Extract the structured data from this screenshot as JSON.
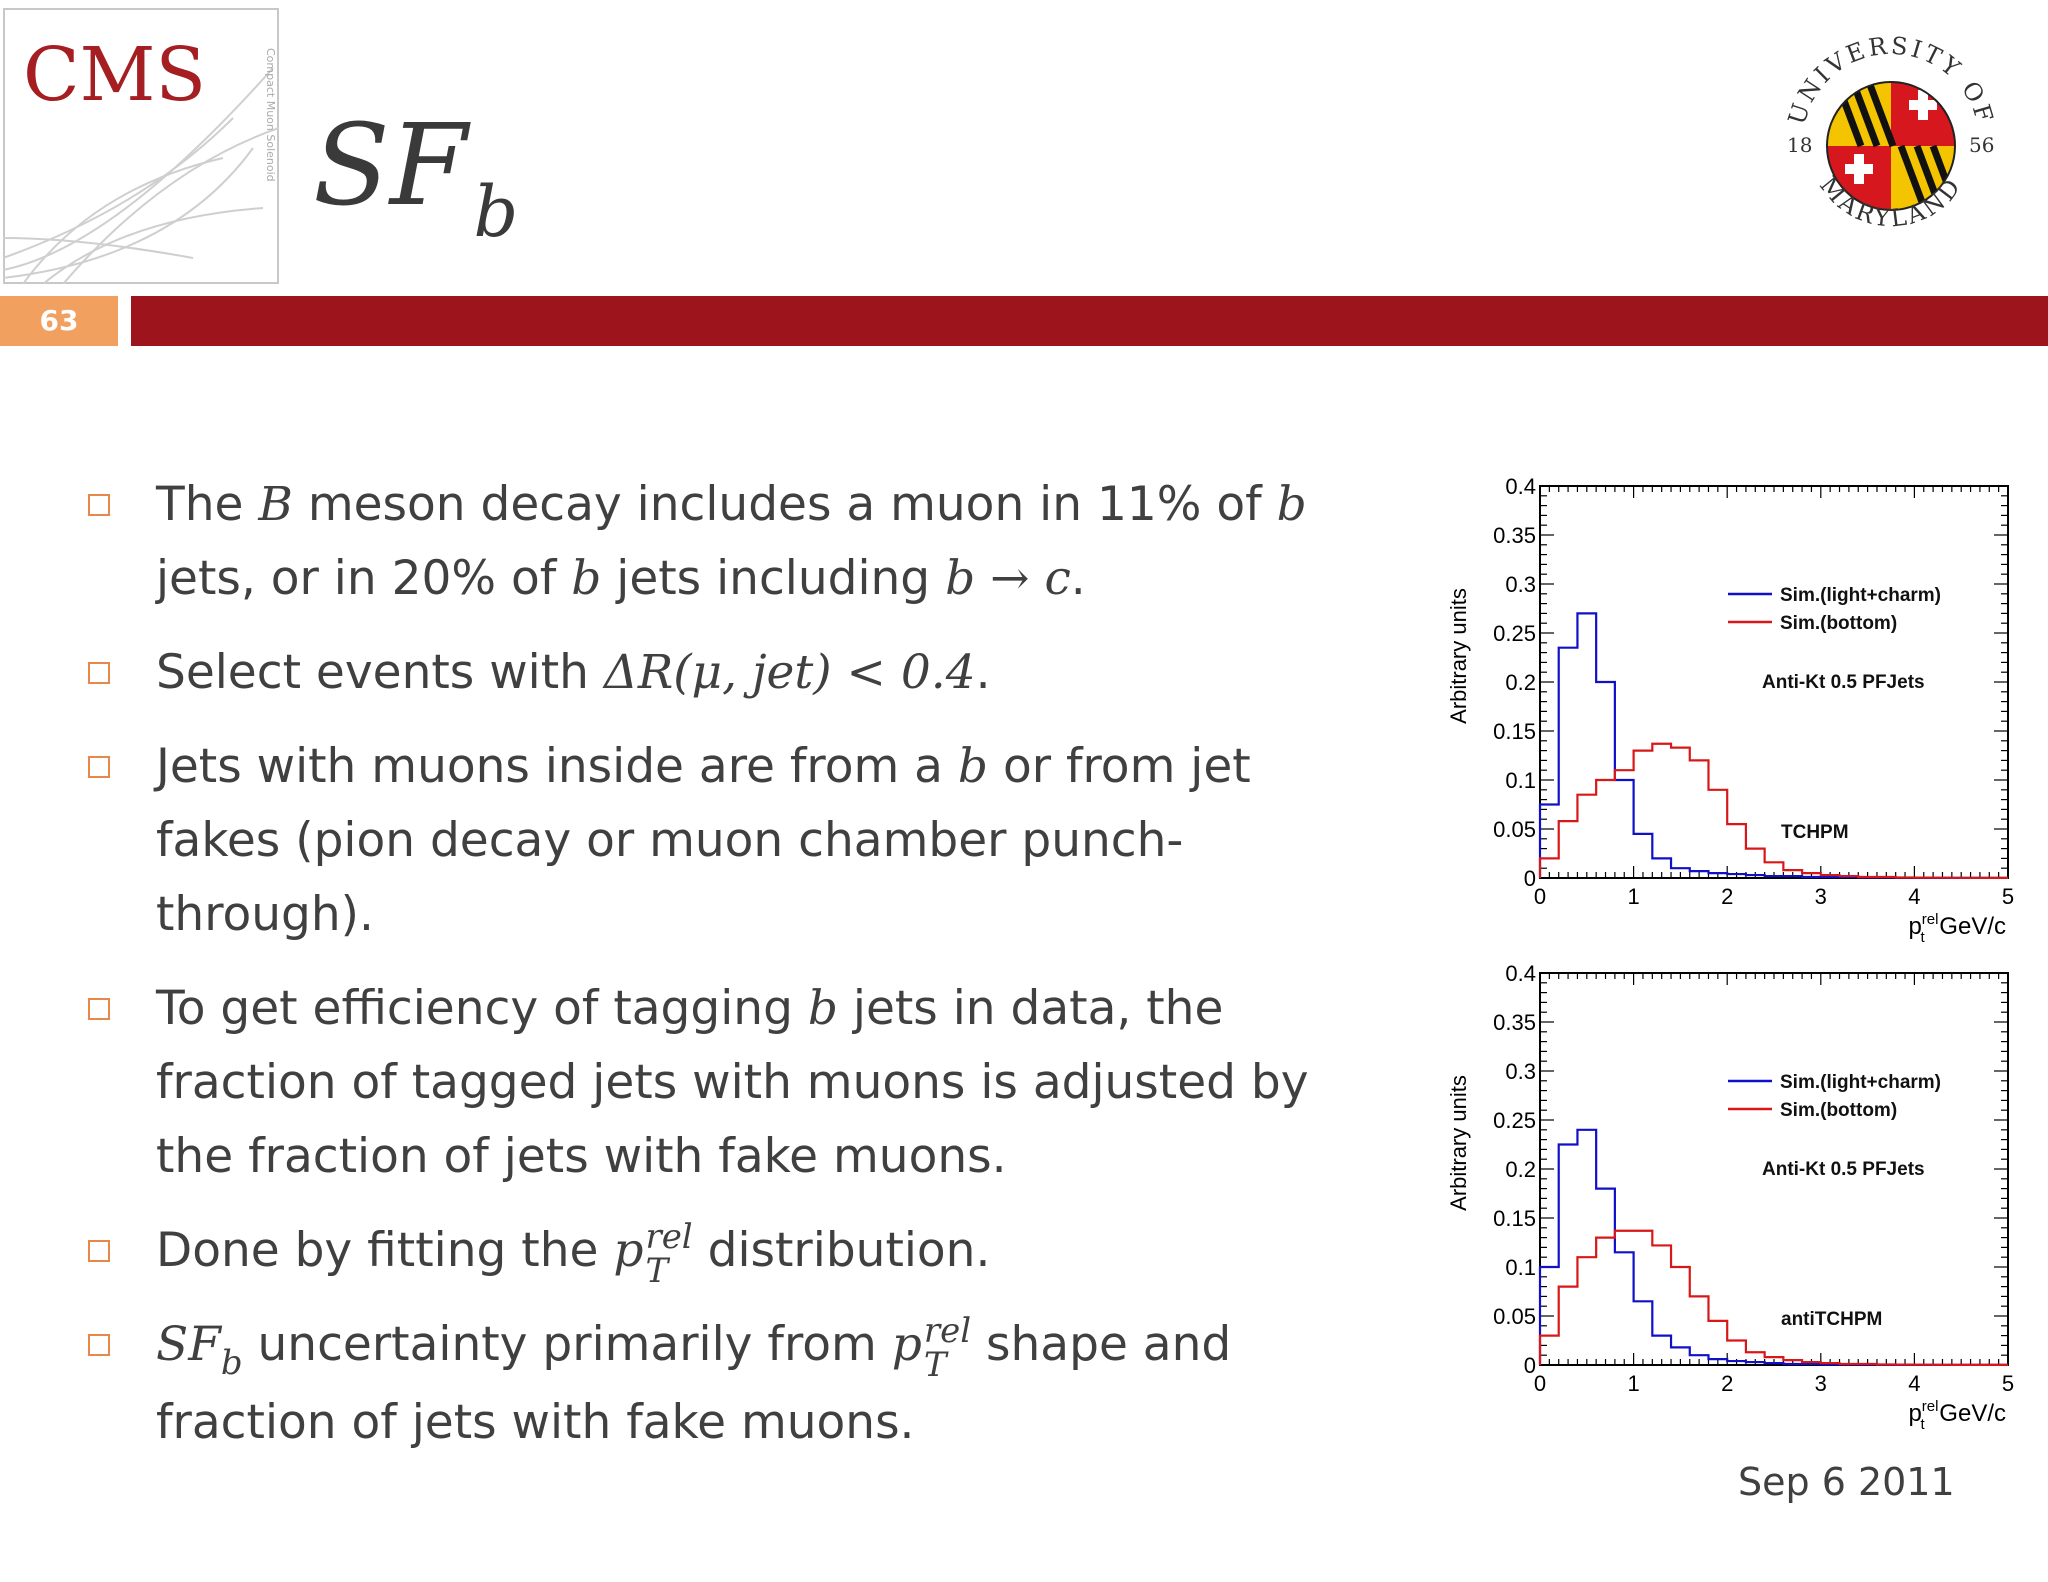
{
  "header": {
    "logo_text": "CMS",
    "logo_subtext": "Compact Muon Solenoid",
    "title_main": "SF",
    "title_sub": "b",
    "seal_text_top": "UNIVERSITY OF",
    "seal_text_bottom": "MARYLAND",
    "seal_year_left": "18",
    "seal_year_right": "56",
    "page_number": "63",
    "bar_color": "#9e141d",
    "badge_color": "#f2a060"
  },
  "bullets": [
    {
      "t1": "The ",
      "m1": "B",
      "t2": " meson decay includes a muon in 11% of ",
      "m2": "b",
      "t3": " jets, or in 20% of ",
      "m3": "b",
      "t4": " jets including ",
      "m4": "b → c",
      "t5": "."
    },
    {
      "t1": "Select events with ",
      "m1": "ΔR(μ, jet) ",
      "m1b": "< 0.4",
      "t2": "."
    },
    {
      "t1": "Jets with muons inside are from a ",
      "m1": "b",
      "t2": " or from jet fakes (pion decay or muon chamber punch-through)."
    },
    {
      "t1": "To get efficiency of tagging ",
      "m1": "b",
      "t2": " jets in data, the fraction of tagged jets with muons is adjusted by the fraction of jets with fake muons."
    },
    {
      "t1": "Done by fitting the ",
      "m_base": "p",
      "m_sup": "rel",
      "m_sub": "T",
      "t2": " distribution."
    },
    {
      "m1_base": "SF",
      "m1_sub": "b",
      "t1": " uncertainty primarily from ",
      "m_base": "p",
      "m_sup": "rel",
      "m_sub": "T",
      "t2": " shape and fraction of jets with fake muons."
    }
  ],
  "date": "Sep 6 2011",
  "chart_data": [
    {
      "type": "line",
      "ylabel": "Arbitrary units",
      "xlabel_base": "p",
      "xlabel_sup": "rel",
      "xlabel_sub": "t",
      "xlabel_unit": "GeV/c",
      "xlim": [
        0,
        5
      ],
      "ylim": [
        0,
        0.4
      ],
      "xticks": [
        "0",
        "1",
        "2",
        "3",
        "4",
        "5"
      ],
      "yticks": [
        "0",
        "0.05",
        "0.1",
        "0.15",
        "0.2",
        "0.25",
        "0.3",
        "0.35",
        "0.4"
      ],
      "bin_width": 0.2,
      "annotation_jets": "Anti-Kt 0.5 PFJets",
      "annotation_tagger": "TCHPM",
      "series": [
        {
          "name": "Sim.(light+charm)",
          "color": "#1010c8",
          "values": [
            0.075,
            0.235,
            0.27,
            0.2,
            0.1,
            0.045,
            0.02,
            0.01,
            0.007,
            0.005,
            0.004,
            0.003,
            0.002,
            0.002,
            0.001,
            0.001,
            0.001,
            0.0005,
            0.0005,
            0.0003,
            0.0002,
            0.0002,
            0.0001,
            0.0001,
            0.0001
          ]
        },
        {
          "name": "Sim.(bottom)",
          "color": "#d81818",
          "values": [
            0.02,
            0.058,
            0.085,
            0.1,
            0.11,
            0.13,
            0.137,
            0.133,
            0.12,
            0.09,
            0.055,
            0.03,
            0.016,
            0.008,
            0.005,
            0.003,
            0.002,
            0.001,
            0.001,
            0.0005,
            0.0004,
            0.0003,
            0.0002,
            0.0001,
            0.0001
          ]
        }
      ]
    },
    {
      "type": "line",
      "ylabel": "Arbitrary units",
      "xlabel_base": "p",
      "xlabel_sup": "rel",
      "xlabel_sub": "t",
      "xlabel_unit": "GeV/c",
      "xlim": [
        0,
        5
      ],
      "ylim": [
        0,
        0.4
      ],
      "xticks": [
        "0",
        "1",
        "2",
        "3",
        "4",
        "5"
      ],
      "yticks": [
        "0",
        "0.05",
        "0.1",
        "0.15",
        "0.2",
        "0.25",
        "0.3",
        "0.35",
        "0.4"
      ],
      "bin_width": 0.2,
      "annotation_jets": "Anti-Kt 0.5 PFJets",
      "annotation_tagger": "antiTCHPM",
      "series": [
        {
          "name": "Sim.(light+charm)",
          "color": "#1010c8",
          "values": [
            0.1,
            0.225,
            0.24,
            0.18,
            0.115,
            0.065,
            0.03,
            0.018,
            0.01,
            0.006,
            0.004,
            0.003,
            0.002,
            0.001,
            0.001,
            0.0005,
            0.0005,
            0.0003,
            0.0002,
            0.0002,
            0.0001,
            0.0001,
            0.0001,
            0.0001,
            0.0001
          ]
        },
        {
          "name": "Sim.(bottom)",
          "color": "#d81818",
          "values": [
            0.03,
            0.08,
            0.11,
            0.13,
            0.137,
            0.137,
            0.122,
            0.1,
            0.07,
            0.045,
            0.025,
            0.013,
            0.008,
            0.005,
            0.003,
            0.002,
            0.001,
            0.001,
            0.0005,
            0.0004,
            0.0003,
            0.0002,
            0.0001,
            0.0001,
            0.0001
          ]
        }
      ]
    }
  ]
}
